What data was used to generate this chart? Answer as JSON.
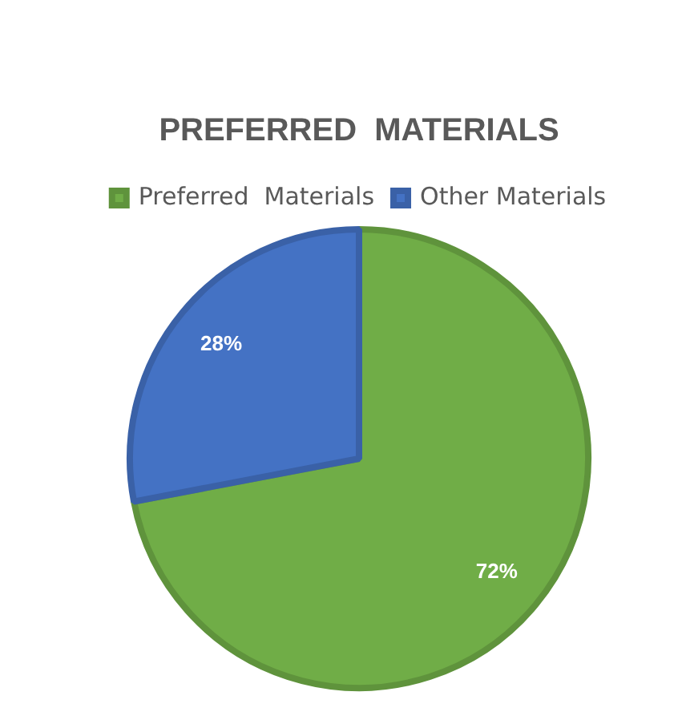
{
  "chart_data": {
    "type": "pie",
    "title": "PREFERRED  MATERIALS",
    "categories": [
      "Preferred  Materials",
      "Other Materials"
    ],
    "values": [
      72,
      28
    ],
    "colors": [
      "#70ad47",
      "#4472c4"
    ],
    "value_labels": [
      "72%",
      "28%"
    ],
    "legend": "top"
  }
}
